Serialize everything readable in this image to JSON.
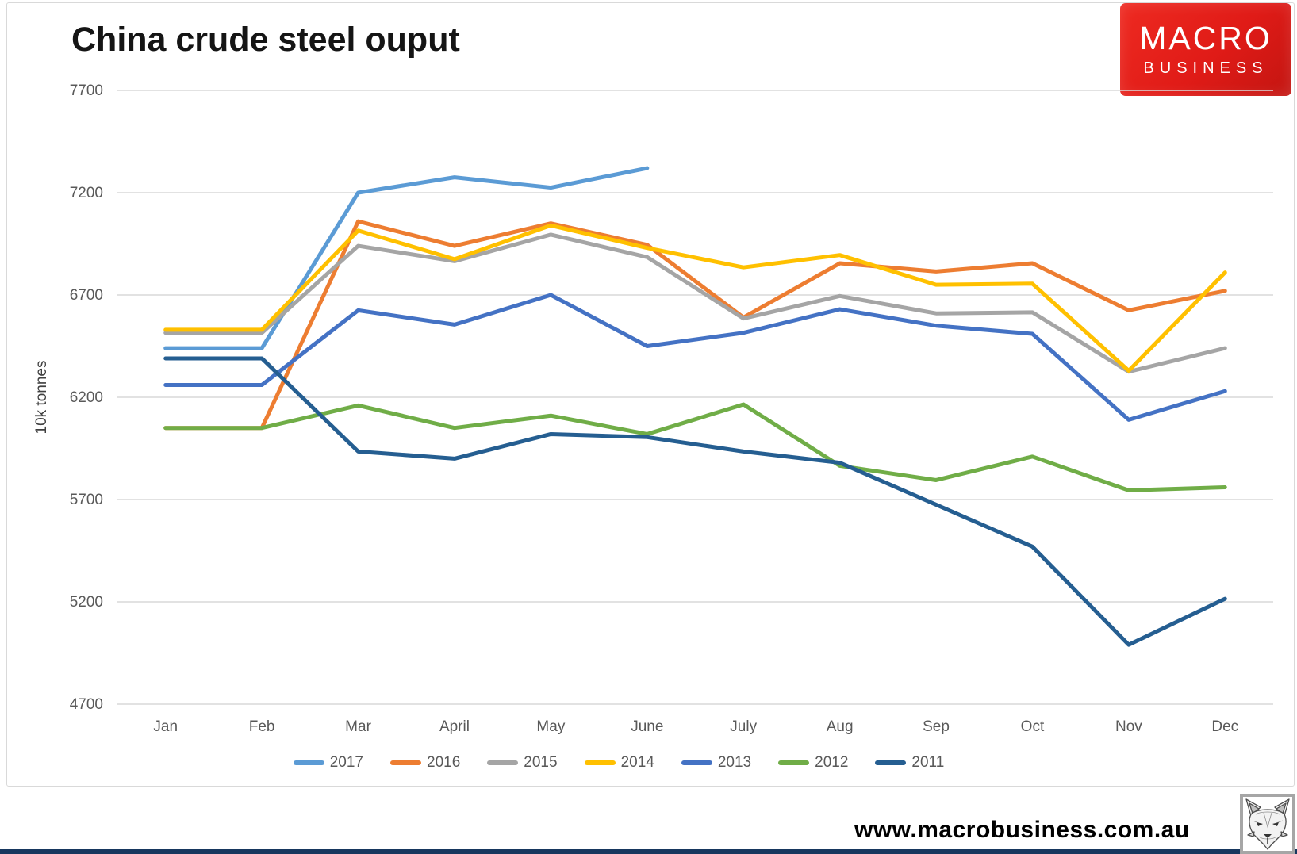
{
  "header": {
    "title": "China crude steel ouput"
  },
  "logo": {
    "line1": "MACRO",
    "line2": "BUSINESS",
    "background_color": "#e01b17"
  },
  "footer": {
    "url": "www.macrobusiness.com.au",
    "bar_color": "#17375e"
  },
  "icons": {
    "wolf_logo": "wolf-head-sketch"
  },
  "chart_data": {
    "type": "line",
    "title": "China crude steel ouput",
    "xlabel": "",
    "ylabel": "10k tonnes",
    "ylim": [
      4700,
      7700
    ],
    "ytick_step": 500,
    "yticks": [
      7700,
      7200,
      6700,
      6200,
      5700,
      5200,
      4700
    ],
    "grid": true,
    "gridline_color": "#d9d9d9",
    "axis_text_color": "#595959",
    "legend_position": "bottom",
    "categories": [
      "Jan",
      "Feb",
      "Mar",
      "April",
      "May",
      "June",
      "July",
      "Aug",
      "Sep",
      "Oct",
      "Nov",
      "Dec"
    ],
    "series": [
      {
        "name": "2017",
        "color": "#5B9BD5",
        "values": [
          6440,
          6440,
          7200,
          7275,
          7225,
          7320,
          null,
          null,
          null,
          null,
          null,
          null
        ]
      },
      {
        "name": "2016",
        "color": "#ED7D31",
        "values": [
          6050,
          6050,
          7060,
          6940,
          7050,
          6945,
          6590,
          6855,
          6815,
          6855,
          6625,
          6720
        ]
      },
      {
        "name": "2015",
        "color": "#A5A5A5",
        "values": [
          6515,
          6515,
          6940,
          6865,
          6995,
          6885,
          6585,
          6695,
          6610,
          6615,
          6325,
          6440
        ]
      },
      {
        "name": "2014",
        "color": "#FFC000",
        "values": [
          6530,
          6530,
          7015,
          6875,
          7040,
          6930,
          6835,
          6895,
          6750,
          6755,
          6330,
          6810
        ]
      },
      {
        "name": "2013",
        "color": "#4472C4",
        "values": [
          6260,
          6260,
          6625,
          6555,
          6700,
          6450,
          6515,
          6630,
          6550,
          6510,
          6090,
          6230
        ]
      },
      {
        "name": "2012",
        "color": "#70AD47",
        "values": [
          6050,
          6050,
          6160,
          6050,
          6110,
          6020,
          6165,
          5865,
          5795,
          5910,
          5745,
          5760
        ]
      },
      {
        "name": "2011",
        "color": "#255E91",
        "values": [
          6390,
          6390,
          5935,
          5900,
          6020,
          6005,
          5935,
          5880,
          5675,
          5470,
          4990,
          5215
        ]
      }
    ]
  }
}
